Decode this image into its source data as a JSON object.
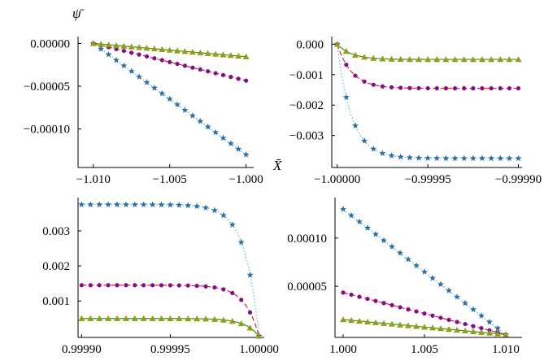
{
  "figure": {
    "y_symbol": "ψ̄",
    "x_symbol": "X̄"
  },
  "colors": {
    "blue": "#2a6fa8",
    "blue_line": "#4fb3d9",
    "purple": "#8b0a8b",
    "red": "#cc1a1a",
    "olive": "#9a9a1a",
    "green": "#1aa31a"
  },
  "chart_data": [
    {
      "type": "line",
      "panel": "top-left",
      "xlim": [
        -1.011,
        -0.9995
      ],
      "ylim": [
        -0.000145,
        8e-06
      ],
      "xticks": [
        -1.01,
        -1.005,
        -1.0
      ],
      "xtick_labels": [
        "−1.010",
        "−1.005",
        "−1.000"
      ],
      "yticks": [
        0.0,
        -5e-05,
        -0.0001
      ],
      "ytick_labels": [
        "0.00000",
        "−0.00005",
        "−0.00010"
      ],
      "ylabel": "ψ̄",
      "xlabel": "X̄",
      "series": [
        {
          "name": "blue-stars",
          "x0": -1.01,
          "x1": -1.0,
          "y0": 0.0,
          "y1": -0.00013,
          "shape": "linear",
          "marker": "star",
          "n": 21
        },
        {
          "name": "purple-circles",
          "x0": -1.01,
          "x1": -1.0,
          "y0": 0.0,
          "y1": -4.35e-05,
          "shape": "linear",
          "marker": "circle",
          "n": 21
        },
        {
          "name": "olive-triangles",
          "x0": -1.01,
          "x1": -1.0,
          "y0": 0.0,
          "y1": -1.55e-05,
          "shape": "linear",
          "marker": "triangle",
          "n": 21
        }
      ]
    },
    {
      "type": "line",
      "panel": "top-right",
      "xlim": [
        -1.000003,
        -0.999898
      ],
      "ylim": [
        -0.00405,
        0.00025
      ],
      "xticks": [
        -1.0,
        -0.99995,
        -0.9999
      ],
      "xtick_labels": [
        "−1.00000",
        "−0.99995",
        "−0.99990"
      ],
      "yticks": [
        0.0,
        -0.001,
        -0.002,
        -0.003
      ],
      "ytick_labels": [
        "0.000",
        "−0.001",
        "−0.002",
        "−0.003"
      ],
      "series": [
        {
          "name": "blue-stars",
          "x0": -1.0,
          "x1": -0.9999,
          "y0": 0.0,
          "y1": -0.00375,
          "shape": "fast",
          "marker": "star",
          "n": 21
        },
        {
          "name": "purple-circles",
          "x0": -1.0,
          "x1": -0.9999,
          "y0": 0.0,
          "y1": -0.00145,
          "shape": "fast",
          "marker": "circle",
          "n": 21
        },
        {
          "name": "olive-triangles",
          "x0": -1.0,
          "x1": -0.9999,
          "y0": 0.0,
          "y1": -0.0005,
          "shape": "fast",
          "marker": "triangle",
          "n": 21
        }
      ]
    },
    {
      "type": "line",
      "panel": "bottom-left",
      "xlim": [
        0.999898,
        1.000003
      ],
      "ylim": [
        -4e-05,
        0.00395
      ],
      "xticks": [
        0.9999,
        0.99995,
        1.0
      ],
      "xtick_labels": [
        "0.99990",
        "0.99995",
        "1.00000"
      ],
      "yticks": [
        0.001,
        0.002,
        0.003
      ],
      "ytick_labels": [
        "0.001",
        "0.002",
        "0.003"
      ],
      "series": [
        {
          "name": "blue-stars",
          "x0": 0.9999,
          "x1": 1.0,
          "y0": 0.00375,
          "y1": 0.0,
          "shape": "late",
          "marker": "star",
          "n": 21
        },
        {
          "name": "purple-circles",
          "x0": 0.9999,
          "x1": 1.0,
          "y0": 0.00145,
          "y1": 0.0,
          "shape": "late",
          "marker": "circle",
          "n": 21
        },
        {
          "name": "olive-triangles",
          "x0": 0.9999,
          "x1": 1.0,
          "y0": 0.0005,
          "y1": 0.0,
          "shape": "late",
          "marker": "triangle",
          "n": 21
        }
      ]
    },
    {
      "type": "line",
      "panel": "bottom-right",
      "xlim": [
        0.9995,
        1.011
      ],
      "ylim": [
        -3e-06,
        0.000142
      ],
      "xticks": [
        1.0,
        1.005,
        1.01
      ],
      "xtick_labels": [
        "1.000",
        "1.005",
        "1.010"
      ],
      "yticks": [
        5e-05,
        0.0001
      ],
      "ytick_labels": [
        "0.00005",
        "0.00010"
      ],
      "series": [
        {
          "name": "blue-stars",
          "x0": 1.0,
          "x1": 1.01,
          "y0": 0.00013,
          "y1": 0.0,
          "shape": "linear",
          "marker": "star",
          "n": 21
        },
        {
          "name": "purple-circles",
          "x0": 1.0,
          "x1": 1.01,
          "y0": 4.35e-05,
          "y1": 0.0,
          "shape": "linear",
          "marker": "circle",
          "n": 21
        },
        {
          "name": "olive-triangles",
          "x0": 1.0,
          "x1": 1.01,
          "y0": 1.55e-05,
          "y1": 0.0,
          "shape": "linear",
          "marker": "triangle",
          "n": 21
        }
      ]
    }
  ]
}
